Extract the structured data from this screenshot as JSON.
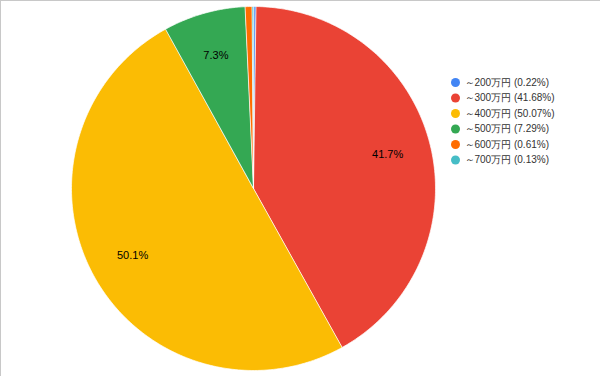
{
  "chart_data": {
    "type": "pie",
    "categories": [
      "～200万円 (0.22%)",
      "～300万円 (41.68%)",
      "～400万円 (50.07%)",
      "～500万円 (7.29%)",
      "～600万円 (0.61%)",
      "～700万円 (0.13%)"
    ],
    "values": [
      0.22,
      41.68,
      50.07,
      7.29,
      0.61,
      0.13
    ],
    "value_labels": [
      null,
      "41.7%",
      "50.1%",
      "7.3%",
      null,
      null
    ],
    "colors": [
      "#4285F4",
      "#EA4335",
      "#FBBC04",
      "#34A853",
      "#FF6D01",
      "#46BDC6"
    ],
    "data_labels": true,
    "legend": "right"
  }
}
